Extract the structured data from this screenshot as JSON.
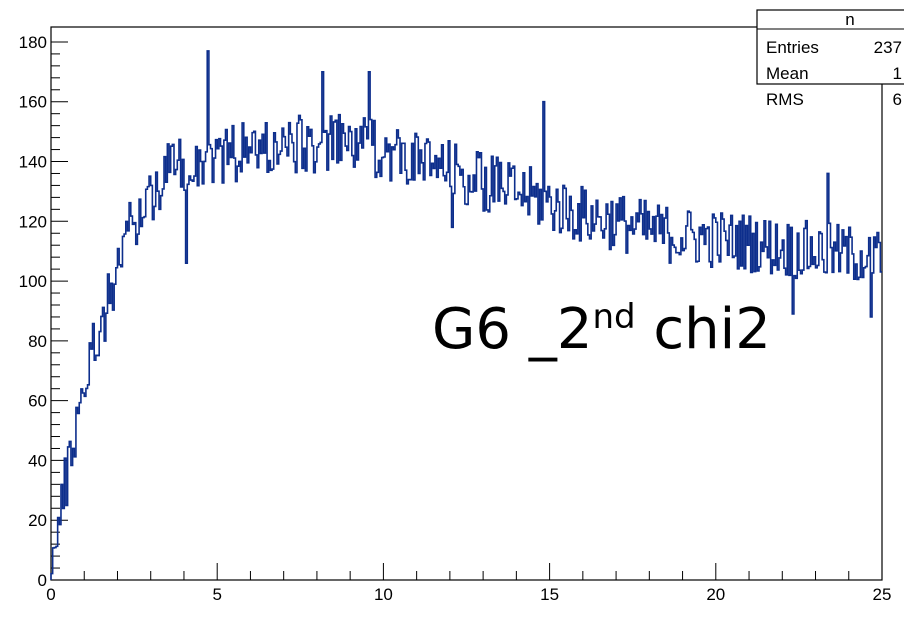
{
  "chart_data": {
    "type": "histogram",
    "title": "",
    "xlabel": "",
    "ylabel": "",
    "xlim": [
      0,
      25
    ],
    "ylim": [
      0,
      185
    ],
    "x_ticks": [
      "0",
      "5",
      "10",
      "15",
      "20",
      "25"
    ],
    "y_ticks": [
      "0",
      "20",
      "40",
      "60",
      "80",
      "100",
      "120",
      "140",
      "160",
      "180"
    ],
    "line_color": "#0d2e8c",
    "bin_count": 500,
    "bin_width": 0.05,
    "profile": [
      [
        0.0,
        4
      ],
      [
        0.2,
        16
      ],
      [
        0.4,
        30
      ],
      [
        0.6,
        42
      ],
      [
        0.8,
        55
      ],
      [
        1.0,
        66
      ],
      [
        1.2,
        75
      ],
      [
        1.5,
        85
      ],
      [
        1.8,
        96
      ],
      [
        2.0,
        106
      ],
      [
        2.3,
        116
      ],
      [
        2.6,
        121
      ],
      [
        3.0,
        129
      ],
      [
        3.5,
        137
      ],
      [
        4.0,
        140
      ],
      [
        5.0,
        142
      ],
      [
        6.0,
        144
      ],
      [
        7.0,
        145
      ],
      [
        8.0,
        146
      ],
      [
        9.0,
        146
      ],
      [
        10.0,
        144
      ],
      [
        11.0,
        140
      ],
      [
        12.0,
        137
      ],
      [
        13.0,
        133
      ],
      [
        14.0,
        130
      ],
      [
        15.0,
        126
      ],
      [
        16.0,
        122
      ],
      [
        17.0,
        120
      ],
      [
        18.0,
        117
      ],
      [
        19.0,
        115
      ],
      [
        20.0,
        114
      ],
      [
        21.0,
        113
      ],
      [
        22.0,
        111
      ],
      [
        23.0,
        110
      ],
      [
        24.0,
        109
      ],
      [
        25.0,
        108
      ]
    ],
    "noise_amplitude": 10,
    "spikes": [
      [
        4.72,
        177
      ],
      [
        9.55,
        170
      ],
      [
        14.8,
        160
      ],
      [
        23.4,
        136
      ],
      [
        8.15,
        170
      ],
      [
        4.1,
        106
      ],
      [
        12.1,
        118
      ],
      [
        22.3,
        89
      ],
      [
        24.7,
        88
      ]
    ],
    "stats_box": {
      "title": "n",
      "rows": [
        {
          "label": "Entries",
          "value": "237"
        },
        {
          "label": "Mean",
          "value": "1"
        },
        {
          "label": "RMS",
          "value": "6"
        }
      ]
    },
    "annotation": {
      "main": "G6 _2",
      "superscript": "nd",
      "tail": " chi2"
    }
  }
}
